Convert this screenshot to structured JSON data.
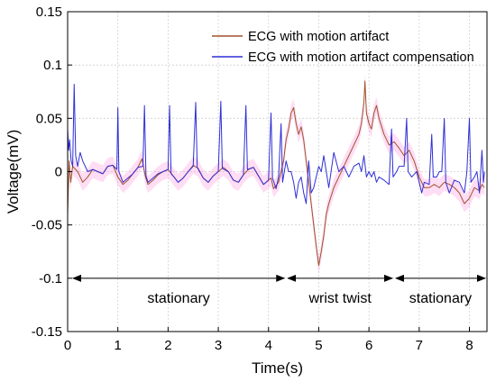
{
  "chart_data": {
    "type": "line",
    "title": "",
    "xlabel": "Time(s)",
    "ylabel": "Voltage(mV)",
    "xlim": [
      0,
      8.35
    ],
    "ylim": [
      -0.15,
      0.15
    ],
    "xticks": [
      0,
      1,
      2,
      3,
      4,
      5,
      6,
      7,
      8
    ],
    "yticks": [
      -0.15,
      -0.1,
      -0.05,
      0,
      0.05,
      0.1,
      0.15
    ],
    "ytick_labels": [
      "-0.15",
      "-0.1",
      "-0.05",
      "0",
      "0.05",
      "0.1",
      "0.15"
    ],
    "grid": true,
    "legend_position": "top-right",
    "series": [
      {
        "name": "ECG with motion artifact",
        "color": "#a0522d",
        "points": [
          [
            0.0,
            -0.04
          ],
          [
            0.03,
            0.01
          ],
          [
            0.06,
            -0.01
          ],
          [
            0.1,
            0.005
          ],
          [
            0.2,
            0.0
          ],
          [
            0.3,
            -0.01
          ],
          [
            0.4,
            -0.005
          ],
          [
            0.5,
            0.002
          ],
          [
            0.6,
            0.0
          ],
          [
            0.7,
            -0.002
          ],
          [
            0.8,
            0.005
          ],
          [
            0.9,
            0.006
          ],
          [
            1.0,
            -0.005
          ],
          [
            1.1,
            -0.012
          ],
          [
            1.2,
            -0.008
          ],
          [
            1.3,
            -0.002
          ],
          [
            1.4,
            0.004
          ],
          [
            1.48,
            0.012
          ],
          [
            1.55,
            -0.005
          ],
          [
            1.6,
            -0.012
          ],
          [
            1.7,
            -0.008
          ],
          [
            1.8,
            -0.003
          ],
          [
            1.9,
            0.0
          ],
          [
            2.0,
            0.002
          ],
          [
            2.1,
            -0.004
          ],
          [
            2.2,
            -0.01
          ],
          [
            2.3,
            -0.006
          ],
          [
            2.4,
            0.0
          ],
          [
            2.5,
            0.006
          ],
          [
            2.6,
            0.003
          ],
          [
            2.7,
            -0.006
          ],
          [
            2.8,
            -0.01
          ],
          [
            2.9,
            -0.004
          ],
          [
            3.0,
            0.0
          ],
          [
            3.1,
            0.004
          ],
          [
            3.2,
            0.0
          ],
          [
            3.3,
            -0.008
          ],
          [
            3.4,
            -0.01
          ],
          [
            3.5,
            -0.003
          ],
          [
            3.6,
            0.002
          ],
          [
            3.7,
            0.004
          ],
          [
            3.8,
            -0.004
          ],
          [
            3.9,
            -0.012
          ],
          [
            4.0,
            -0.008
          ],
          [
            4.05,
            -0.006
          ],
          [
            4.1,
            -0.016
          ],
          [
            4.2,
            -0.01
          ],
          [
            4.3,
            0.01
          ],
          [
            4.35,
            0.03
          ],
          [
            4.4,
            0.04
          ],
          [
            4.45,
            0.055
          ],
          [
            4.5,
            0.06
          ],
          [
            4.55,
            0.045
          ],
          [
            4.6,
            0.035
          ],
          [
            4.65,
            0.042
          ],
          [
            4.7,
            0.03
          ],
          [
            4.75,
            0.01
          ],
          [
            4.8,
            -0.01
          ],
          [
            4.85,
            -0.03
          ],
          [
            4.9,
            -0.05
          ],
          [
            4.95,
            -0.07
          ],
          [
            5.0,
            -0.088
          ],
          [
            5.05,
            -0.075
          ],
          [
            5.1,
            -0.06
          ],
          [
            5.15,
            -0.04
          ],
          [
            5.2,
            -0.03
          ],
          [
            5.3,
            -0.015
          ],
          [
            5.4,
            -0.005
          ],
          [
            5.5,
            0.005
          ],
          [
            5.6,
            0.015
          ],
          [
            5.7,
            0.025
          ],
          [
            5.8,
            0.035
          ],
          [
            5.85,
            0.045
          ],
          [
            5.9,
            0.065
          ],
          [
            5.92,
            0.085
          ],
          [
            5.95,
            0.055
          ],
          [
            6.0,
            0.045
          ],
          [
            6.05,
            0.04
          ],
          [
            6.1,
            0.055
          ],
          [
            6.15,
            0.062
          ],
          [
            6.2,
            0.05
          ],
          [
            6.3,
            0.035
          ],
          [
            6.4,
            0.025
          ],
          [
            6.5,
            0.028
          ],
          [
            6.6,
            0.022
          ],
          [
            6.7,
            0.015
          ],
          [
            6.8,
            0.02
          ],
          [
            6.9,
            0.01
          ],
          [
            7.0,
            -0.005
          ],
          [
            7.1,
            -0.015
          ],
          [
            7.2,
            -0.015
          ],
          [
            7.3,
            -0.012
          ],
          [
            7.4,
            -0.015
          ],
          [
            7.5,
            -0.01
          ],
          [
            7.6,
            -0.012
          ],
          [
            7.7,
            -0.015
          ],
          [
            7.8,
            -0.02
          ],
          [
            7.9,
            -0.03
          ],
          [
            8.0,
            -0.025
          ],
          [
            8.1,
            -0.015
          ],
          [
            8.2,
            -0.018
          ],
          [
            8.25,
            -0.012
          ],
          [
            8.3,
            -0.015
          ]
        ]
      },
      {
        "name": "ECG with motion artifact compensation",
        "color": "#2f2fd6",
        "points": [
          [
            0.0,
            0.04
          ],
          [
            0.02,
            0.02
          ],
          [
            0.04,
            0.03
          ],
          [
            0.07,
            0.01
          ],
          [
            0.1,
            0.005
          ],
          [
            0.13,
            0.082
          ],
          [
            0.16,
            0.015
          ],
          [
            0.2,
            0.005
          ],
          [
            0.25,
            0.018
          ],
          [
            0.3,
            0.01
          ],
          [
            0.4,
            0.0
          ],
          [
            0.5,
            0.002
          ],
          [
            0.6,
            0.0
          ],
          [
            0.7,
            -0.002
          ],
          [
            0.8,
            0.005
          ],
          [
            0.9,
            0.006
          ],
          [
            0.98,
            0.002
          ],
          [
            1.0,
            0.06
          ],
          [
            1.02,
            0.0
          ],
          [
            1.1,
            -0.01
          ],
          [
            1.2,
            -0.006
          ],
          [
            1.3,
            -0.002
          ],
          [
            1.4,
            0.004
          ],
          [
            1.5,
            0.005
          ],
          [
            1.53,
            0.062
          ],
          [
            1.56,
            -0.004
          ],
          [
            1.6,
            -0.01
          ],
          [
            1.7,
            -0.006
          ],
          [
            1.8,
            -0.002
          ],
          [
            1.9,
            0.0
          ],
          [
            2.0,
            0.002
          ],
          [
            2.03,
            0.062
          ],
          [
            2.06,
            -0.002
          ],
          [
            2.1,
            -0.004
          ],
          [
            2.2,
            -0.01
          ],
          [
            2.3,
            -0.006
          ],
          [
            2.4,
            0.0
          ],
          [
            2.5,
            0.005
          ],
          [
            2.55,
            0.065
          ],
          [
            2.58,
            0.004
          ],
          [
            2.7,
            -0.006
          ],
          [
            2.8,
            -0.01
          ],
          [
            2.9,
            -0.004
          ],
          [
            3.0,
            0.0
          ],
          [
            3.05,
            0.066
          ],
          [
            3.08,
            0.003
          ],
          [
            3.2,
            0.0
          ],
          [
            3.3,
            -0.008
          ],
          [
            3.4,
            -0.01
          ],
          [
            3.5,
            -0.003
          ],
          [
            3.55,
            0.062
          ],
          [
            3.58,
            0.002
          ],
          [
            3.7,
            0.004
          ],
          [
            3.8,
            -0.004
          ],
          [
            3.9,
            -0.012
          ],
          [
            4.0,
            -0.008
          ],
          [
            4.05,
            0.055
          ],
          [
            4.08,
            -0.006
          ],
          [
            4.15,
            -0.016
          ],
          [
            4.2,
            -0.005
          ],
          [
            4.25,
            0.045
          ],
          [
            4.28,
            -0.01
          ],
          [
            4.35,
            0.01
          ],
          [
            4.4,
            0.0
          ],
          [
            4.45,
            0.0
          ],
          [
            4.5,
            -0.01
          ],
          [
            4.55,
            -0.025
          ],
          [
            4.6,
            -0.01
          ],
          [
            4.65,
            -0.005
          ],
          [
            4.7,
            -0.02
          ],
          [
            4.75,
            -0.03
          ],
          [
            4.8,
            0.01
          ],
          [
            4.85,
            -0.02
          ],
          [
            4.9,
            -0.015
          ],
          [
            4.95,
            -0.005
          ],
          [
            5.0,
            0.005
          ],
          [
            5.05,
            0.0
          ],
          [
            5.1,
            0.015
          ],
          [
            5.15,
            0.0
          ],
          [
            5.2,
            -0.015
          ],
          [
            5.3,
            0.018
          ],
          [
            5.4,
            0.0
          ],
          [
            5.5,
            0.005
          ],
          [
            5.55,
            0.0
          ],
          [
            5.6,
            -0.005
          ],
          [
            5.7,
            0.005
          ],
          [
            5.8,
            0.008
          ],
          [
            5.85,
            0.0
          ],
          [
            5.9,
            0.015
          ],
          [
            5.95,
            -0.005
          ],
          [
            6.0,
            0.0
          ],
          [
            6.05,
            -0.005
          ],
          [
            6.1,
            0.0
          ],
          [
            6.15,
            -0.01
          ],
          [
            6.2,
            -0.005
          ],
          [
            6.3,
            -0.008
          ],
          [
            6.4,
            -0.012
          ],
          [
            6.45,
            0.04
          ],
          [
            6.48,
            -0.005
          ],
          [
            6.55,
            0.0
          ],
          [
            6.6,
            0.005
          ],
          [
            6.7,
            0.005
          ],
          [
            6.75,
            0.05
          ],
          [
            6.78,
            0.0
          ],
          [
            6.85,
            -0.005
          ],
          [
            6.95,
            0.0
          ],
          [
            7.0,
            -0.01
          ],
          [
            7.05,
            -0.02
          ],
          [
            7.1,
            -0.01
          ],
          [
            7.2,
            -0.012
          ],
          [
            7.25,
            0.035
          ],
          [
            7.28,
            -0.005
          ],
          [
            7.35,
            -0.005
          ],
          [
            7.4,
            0.0
          ],
          [
            7.45,
            0.0
          ],
          [
            7.5,
            0.05
          ],
          [
            7.53,
            -0.01
          ],
          [
            7.6,
            -0.02
          ],
          [
            7.7,
            -0.008
          ],
          [
            7.8,
            -0.01
          ],
          [
            7.85,
            -0.015
          ],
          [
            7.9,
            -0.02
          ],
          [
            7.95,
            0.0
          ],
          [
            8.0,
            0.05
          ],
          [
            8.03,
            -0.01
          ],
          [
            8.1,
            -0.005
          ],
          [
            8.15,
            0.0
          ],
          [
            8.2,
            -0.02
          ],
          [
            8.25,
            0.02
          ],
          [
            8.28,
            -0.01
          ],
          [
            8.3,
            0.0
          ]
        ]
      }
    ],
    "annotations": [
      {
        "label": "stationary",
        "from": 0.0,
        "to": 4.35,
        "y_arrow": -0.1,
        "y_text": -0.123
      },
      {
        "label": "wrist twist",
        "from": 4.35,
        "to": 6.5,
        "y_arrow": -0.1,
        "y_text": -0.123
      },
      {
        "label": "stationary",
        "from": 6.5,
        "to": 8.35,
        "y_arrow": -0.1,
        "y_text": -0.123
      }
    ],
    "uncertainty_band": {
      "color": "#ff66cc",
      "opacity": 0.22,
      "half_width": 0.008
    }
  }
}
